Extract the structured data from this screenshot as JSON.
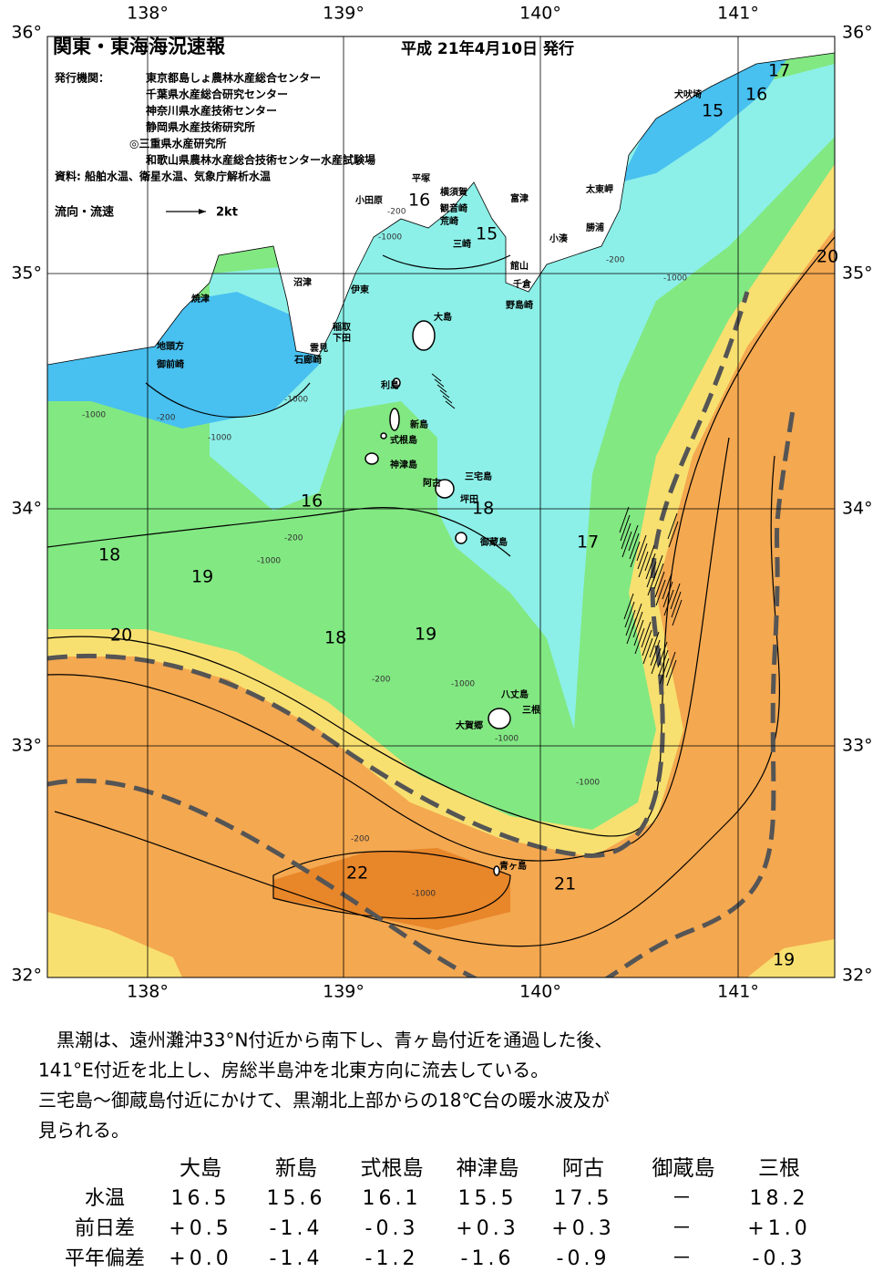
{
  "header": {
    "title": "関東・東海海況速報",
    "date": "平成 21年4月10日 発行",
    "issuer_label": "発行機関：",
    "issuers": [
      "東京都島しょ農林水産総合センター",
      "千葉県水産総合研究センター",
      "神奈川県水産技術センター",
      "静岡県水産技術研究所",
      "◎三重県水産研究所",
      "和歌山県農林水産総合技術センター水産試験場"
    ],
    "source": "資料: 船舶水温、衛星水温、気象庁解析水温",
    "legend_label": "流向・流速",
    "legend_speed": "2kt"
  },
  "map": {
    "longitudes": [
      "138°",
      "139°",
      "140°",
      "141°"
    ],
    "latitudes": [
      "36°",
      "35°",
      "34°",
      "33°",
      "32°"
    ],
    "places": [
      "犬吠埼",
      "太東岬",
      "勝浦",
      "小湊",
      "富津",
      "横須賀",
      "観音崎",
      "荒崎",
      "三崎",
      "平塚",
      "小田原",
      "館山",
      "千倉",
      "野島崎",
      "沼津",
      "伊東",
      "稲取",
      "下田",
      "雲見",
      "石廊崎",
      "焼津",
      "地頭方",
      "御前崎",
      "大島",
      "利島",
      "新島",
      "式根島",
      "神津島",
      "阿古",
      "三宅島",
      "坪田",
      "御蔵島",
      "八丈島",
      "三根",
      "大賀郷",
      "青ヶ島"
    ],
    "isotherms": [
      "17",
      "16",
      "15",
      "16",
      "15",
      "20",
      "16",
      "18",
      "17",
      "18",
      "19",
      "20",
      "18",
      "19",
      "22",
      "21",
      "19"
    ],
    "depths": [
      "-200",
      "-1000",
      "-200",
      "-1000",
      "-1000",
      "-200",
      "-1000",
      "-1000",
      "-1000",
      "-200",
      "-1000",
      "-1000",
      "-1000",
      "-200",
      "-1000",
      "-200"
    ]
  },
  "text": {
    "lines": [
      "　黒潮は、遠州灘沖33°N付近から南下し、青ヶ島付近を通過した後、",
      "141°E付近を北上し、房総半島沖を北東方向に流去している。",
      "三宅島～御蔵島付近にかけて、黒潮北上部からの18℃台の暖水波及が",
      "見られる。"
    ]
  },
  "table": {
    "columns": [
      "大島",
      "新島",
      "式根島",
      "神津島",
      "阿古",
      "御蔵島",
      "三根"
    ],
    "rows": [
      [
        "水温",
        "16.5",
        "15.6",
        "16.1",
        "15.5",
        "17.5",
        "－",
        "18.2"
      ],
      [
        "前日差",
        "+0.5",
        "-1.4",
        "-0.3",
        "+0.3",
        "+0.3",
        "－",
        "+1.0"
      ],
      [
        "平年偏差",
        "+0.0",
        "-1.4",
        "-1.2",
        "-1.6",
        "-0.9",
        "－",
        "-0.3"
      ]
    ]
  }
}
